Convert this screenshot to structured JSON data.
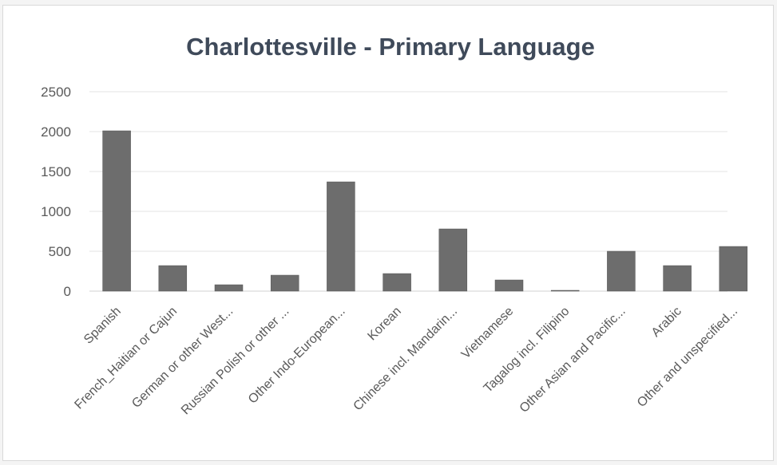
{
  "chart_data": {
    "type": "bar",
    "title": "Charlottesville - Primary Language",
    "xlabel": "",
    "ylabel": "",
    "ylim": [
      0,
      2500
    ],
    "yticks": [
      "0",
      "500",
      "1000",
      "1500",
      "2000",
      "2500"
    ],
    "grid": true,
    "legend": "none",
    "bar_color": "#6d6d6d",
    "categories": [
      "Spanish",
      "French_Haitian or Cajun",
      "German or other West...",
      "Russian Polish or other ...",
      "Other Indo-European...",
      "Korean",
      "Chinese incl. Mandarin...",
      "Vietnamese",
      "Tagalog incl. Filipino",
      "Other Asian and Pacific...",
      "Arabic",
      "Other and unspecified..."
    ],
    "values": [
      2010,
      320,
      80,
      200,
      1370,
      220,
      780,
      140,
      10,
      500,
      320,
      560
    ]
  }
}
